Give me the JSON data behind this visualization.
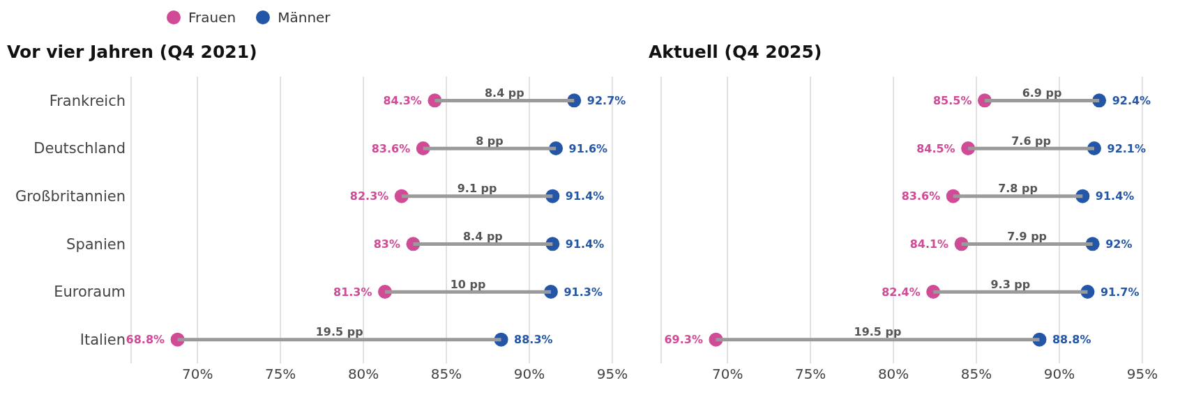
{
  "chart_data": [
    {
      "type": "scatter",
      "title": "Vor vier Jahren (Q4 2021)",
      "orientation": "horizontal",
      "legend": "top left",
      "grid": "x",
      "categories": [
        "Frankreich",
        "Deutschland",
        "Großbritannien",
        "Spanien",
        "Euroraum",
        "Italien"
      ],
      "xlim": [
        66,
        95
      ],
      "xticks": [
        {
          "value": 70,
          "label": "70%"
        },
        {
          "value": 75,
          "label": "75%"
        },
        {
          "value": 80,
          "label": "80%"
        },
        {
          "value": 85,
          "label": "85%"
        },
        {
          "value": 90,
          "label": "90%"
        },
        {
          "value": 95,
          "label": "95%"
        }
      ],
      "series": [
        {
          "type": "bar",
          "color": "#9a9a9a",
          "base": [
            84.3,
            83.6,
            82.3,
            83,
            81.3,
            68.8
          ],
          "values": [
            8.4,
            8,
            9.1,
            8.4,
            10,
            19.5
          ],
          "value_labels": [
            "8.4 pp",
            "8 pp",
            "9.1 pp",
            "8.4 pp",
            "10 pp",
            "19.5 pp"
          ]
        },
        {
          "name": "Frauen",
          "color": "#d04a96",
          "values": [
            84.3,
            83.6,
            82.3,
            83,
            81.3,
            68.8
          ],
          "value_labels": [
            "84.3%",
            "83.6%",
            "82.3%",
            "83%",
            "81.3%",
            "68.8%"
          ]
        },
        {
          "name": "Männer",
          "color": "#2456a8",
          "values": [
            92.7,
            91.6,
            91.4,
            91.4,
            91.3,
            88.3
          ],
          "value_labels": [
            "92.7%",
            "91.6%",
            "91.4%",
            "91.4%",
            "91.3%",
            "88.3%"
          ]
        }
      ]
    },
    {
      "type": "scatter",
      "title": "Aktuell (Q4 2025)",
      "orientation": "horizontal",
      "grid": "x",
      "tick_labels": "x",
      "categories": [
        null,
        null,
        null,
        null,
        null,
        null
      ],
      "xlim": [
        66,
        95
      ],
      "xticks": [
        {
          "value": 70,
          "label": "70%"
        },
        {
          "value": 75,
          "label": "75%"
        },
        {
          "value": 80,
          "label": "80%"
        },
        {
          "value": 85,
          "label": "85%"
        },
        {
          "value": 90,
          "label": "90%"
        },
        {
          "value": 95,
          "label": "95%"
        }
      ],
      "series": [
        {
          "type": "bar",
          "color": "#9a9a9a",
          "base": [
            85.5,
            84.5,
            83.6,
            84.1,
            82.4,
            69.3
          ],
          "values": [
            6.9,
            7.6,
            7.8,
            7.9,
            9.3,
            19.5
          ],
          "value_labels": [
            "6.9 pp",
            "7.6 pp",
            "7.8 pp",
            "7.9 pp",
            "9.3 pp",
            "19.5 pp"
          ]
        },
        {
          "color": "#d04a96",
          "values": [
            85.5,
            84.5,
            83.6,
            84.1,
            82.4,
            69.3
          ],
          "value_labels": [
            "85.5%",
            "84.5%",
            "83.6%",
            "84.1%",
            "82.4%",
            "69.3%"
          ]
        },
        {
          "color": "#2456a8",
          "values": [
            92.4,
            92.1,
            91.4,
            92,
            91.7,
            88.8
          ],
          "value_labels": [
            "92.4%",
            "92.1%",
            "91.4%",
            "92%",
            "91.7%",
            "88.8%"
          ]
        }
      ]
    }
  ]
}
